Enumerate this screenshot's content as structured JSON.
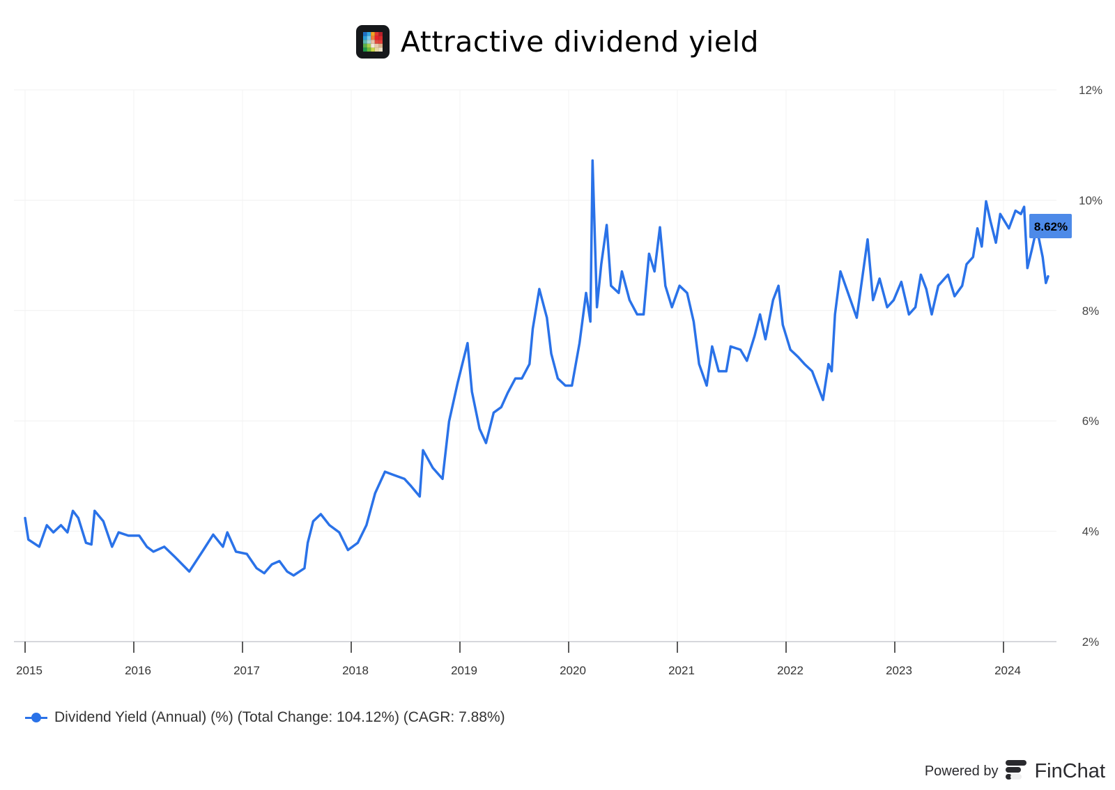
{
  "header": {
    "title": "Attractive dividend yield",
    "logo_icon": "pixel-grid-logo-icon"
  },
  "chart_data": {
    "type": "line",
    "title": "Attractive dividend yield",
    "xlabel": "",
    "ylabel": "",
    "x_ticks": [
      "2015",
      "2016",
      "2017",
      "2018",
      "2019",
      "2020",
      "2021",
      "2022",
      "2023",
      "2024"
    ],
    "y_ticks": [
      "2%",
      "4%",
      "6%",
      "8%",
      "10%",
      "12%"
    ],
    "ylim": [
      2,
      12
    ],
    "xlim": [
      2014.9,
      2024.5
    ],
    "grid": true,
    "y_axis_position": "right",
    "legend_position": "bottom-left",
    "series": [
      {
        "name": "Dividend Yield (Annual) (%) (Total Change: 104.12%) (CAGR: 7.88%)",
        "color": "#2a72e8",
        "last_value_label": "8.62%",
        "points": [
          [
            2015.0,
            4.24
          ],
          [
            2015.03,
            3.85
          ],
          [
            2015.13,
            3.72
          ],
          [
            2015.2,
            4.11
          ],
          [
            2015.26,
            3.98
          ],
          [
            2015.33,
            4.11
          ],
          [
            2015.39,
            3.98
          ],
          [
            2015.44,
            4.37
          ],
          [
            2015.49,
            4.24
          ],
          [
            2015.56,
            3.79
          ],
          [
            2015.61,
            3.76
          ],
          [
            2015.64,
            4.37
          ],
          [
            2015.72,
            4.18
          ],
          [
            2015.8,
            3.72
          ],
          [
            2015.86,
            3.98
          ],
          [
            2015.95,
            3.92
          ],
          [
            2016.05,
            3.92
          ],
          [
            2016.12,
            3.72
          ],
          [
            2016.18,
            3.63
          ],
          [
            2016.28,
            3.72
          ],
          [
            2016.38,
            3.53
          ],
          [
            2016.51,
            3.27
          ],
          [
            2016.64,
            3.66
          ],
          [
            2016.73,
            3.94
          ],
          [
            2016.82,
            3.72
          ],
          [
            2016.86,
            3.98
          ],
          [
            2016.94,
            3.63
          ],
          [
            2017.04,
            3.59
          ],
          [
            2017.13,
            3.33
          ],
          [
            2017.2,
            3.24
          ],
          [
            2017.27,
            3.4
          ],
          [
            2017.34,
            3.46
          ],
          [
            2017.41,
            3.27
          ],
          [
            2017.47,
            3.2
          ],
          [
            2017.57,
            3.33
          ],
          [
            2017.6,
            3.79
          ],
          [
            2017.65,
            4.18
          ],
          [
            2017.72,
            4.31
          ],
          [
            2017.8,
            4.11
          ],
          [
            2017.89,
            3.98
          ],
          [
            2017.97,
            3.66
          ],
          [
            2018.06,
            3.79
          ],
          [
            2018.14,
            4.11
          ],
          [
            2018.22,
            4.69
          ],
          [
            2018.31,
            5.08
          ],
          [
            2018.39,
            5.02
          ],
          [
            2018.49,
            4.95
          ],
          [
            2018.55,
            4.82
          ],
          [
            2018.63,
            4.63
          ],
          [
            2018.66,
            5.47
          ],
          [
            2018.75,
            5.15
          ],
          [
            2018.84,
            4.95
          ],
          [
            2018.9,
            5.99
          ],
          [
            2018.98,
            6.7
          ],
          [
            2019.07,
            7.41
          ],
          [
            2019.11,
            6.53
          ],
          [
            2019.18,
            5.86
          ],
          [
            2019.24,
            5.6
          ],
          [
            2019.31,
            6.15
          ],
          [
            2019.38,
            6.25
          ],
          [
            2019.44,
            6.51
          ],
          [
            2019.51,
            6.77
          ],
          [
            2019.57,
            6.77
          ],
          [
            2019.64,
            7.03
          ],
          [
            2019.67,
            7.67
          ],
          [
            2019.73,
            8.39
          ],
          [
            2019.8,
            7.87
          ],
          [
            2019.84,
            7.22
          ],
          [
            2019.9,
            6.77
          ],
          [
            2019.97,
            6.64
          ],
          [
            2020.03,
            6.64
          ],
          [
            2020.1,
            7.41
          ],
          [
            2020.16,
            8.32
          ],
          [
            2020.2,
            7.8
          ],
          [
            2020.22,
            10.72
          ],
          [
            2020.26,
            8.06
          ],
          [
            2020.3,
            8.84
          ],
          [
            2020.35,
            9.55
          ],
          [
            2020.39,
            8.45
          ],
          [
            2020.46,
            8.32
          ],
          [
            2020.49,
            8.71
          ],
          [
            2020.56,
            8.19
          ],
          [
            2020.63,
            7.93
          ],
          [
            2020.69,
            7.93
          ],
          [
            2020.74,
            9.03
          ],
          [
            2020.79,
            8.71
          ],
          [
            2020.84,
            9.51
          ],
          [
            2020.89,
            8.45
          ],
          [
            2020.95,
            8.06
          ],
          [
            2021.02,
            8.45
          ],
          [
            2021.09,
            8.32
          ],
          [
            2021.15,
            7.8
          ],
          [
            2021.2,
            7.03
          ],
          [
            2021.27,
            6.64
          ],
          [
            2021.32,
            7.35
          ],
          [
            2021.38,
            6.9
          ],
          [
            2021.45,
            6.9
          ],
          [
            2021.49,
            7.35
          ],
          [
            2021.58,
            7.29
          ],
          [
            2021.64,
            7.09
          ],
          [
            2021.71,
            7.54
          ],
          [
            2021.76,
            7.93
          ],
          [
            2021.81,
            7.48
          ],
          [
            2021.88,
            8.19
          ],
          [
            2021.93,
            8.45
          ],
          [
            2021.97,
            7.74
          ],
          [
            2022.04,
            7.29
          ],
          [
            2022.11,
            7.16
          ],
          [
            2022.17,
            7.03
          ],
          [
            2022.24,
            6.9
          ],
          [
            2022.34,
            6.38
          ],
          [
            2022.39,
            7.03
          ],
          [
            2022.42,
            6.9
          ],
          [
            2022.45,
            7.93
          ],
          [
            2022.5,
            8.71
          ],
          [
            2022.57,
            8.32
          ],
          [
            2022.65,
            7.87
          ],
          [
            2022.7,
            8.58
          ],
          [
            2022.75,
            9.29
          ],
          [
            2022.8,
            8.19
          ],
          [
            2022.86,
            8.58
          ],
          [
            2022.93,
            8.06
          ],
          [
            2022.99,
            8.19
          ],
          [
            2023.06,
            8.52
          ],
          [
            2023.13,
            7.93
          ],
          [
            2023.19,
            8.06
          ],
          [
            2023.24,
            8.65
          ],
          [
            2023.29,
            8.39
          ],
          [
            2023.34,
            7.93
          ],
          [
            2023.4,
            8.45
          ],
          [
            2023.49,
            8.65
          ],
          [
            2023.55,
            8.26
          ],
          [
            2023.62,
            8.45
          ],
          [
            2023.66,
            8.84
          ],
          [
            2023.72,
            8.97
          ],
          [
            2023.76,
            9.49
          ],
          [
            2023.8,
            9.16
          ],
          [
            2023.84,
            9.98
          ],
          [
            2023.88,
            9.62
          ],
          [
            2023.93,
            9.23
          ],
          [
            2023.97,
            9.75
          ],
          [
            2024.05,
            9.49
          ],
          [
            2024.11,
            9.81
          ],
          [
            2024.16,
            9.75
          ],
          [
            2024.19,
            9.88
          ],
          [
            2024.22,
            8.77
          ],
          [
            2024.26,
            9.1
          ],
          [
            2024.29,
            9.36
          ],
          [
            2024.32,
            9.36
          ],
          [
            2024.36,
            8.97
          ],
          [
            2024.39,
            8.5
          ],
          [
            2024.41,
            8.62
          ]
        ]
      }
    ]
  },
  "legend": {
    "label": "Dividend Yield (Annual) (%) (Total Change: 104.12%) (CAGR: 7.88%)"
  },
  "footer": {
    "powered_by": "Powered by",
    "brand": "FinChat"
  }
}
